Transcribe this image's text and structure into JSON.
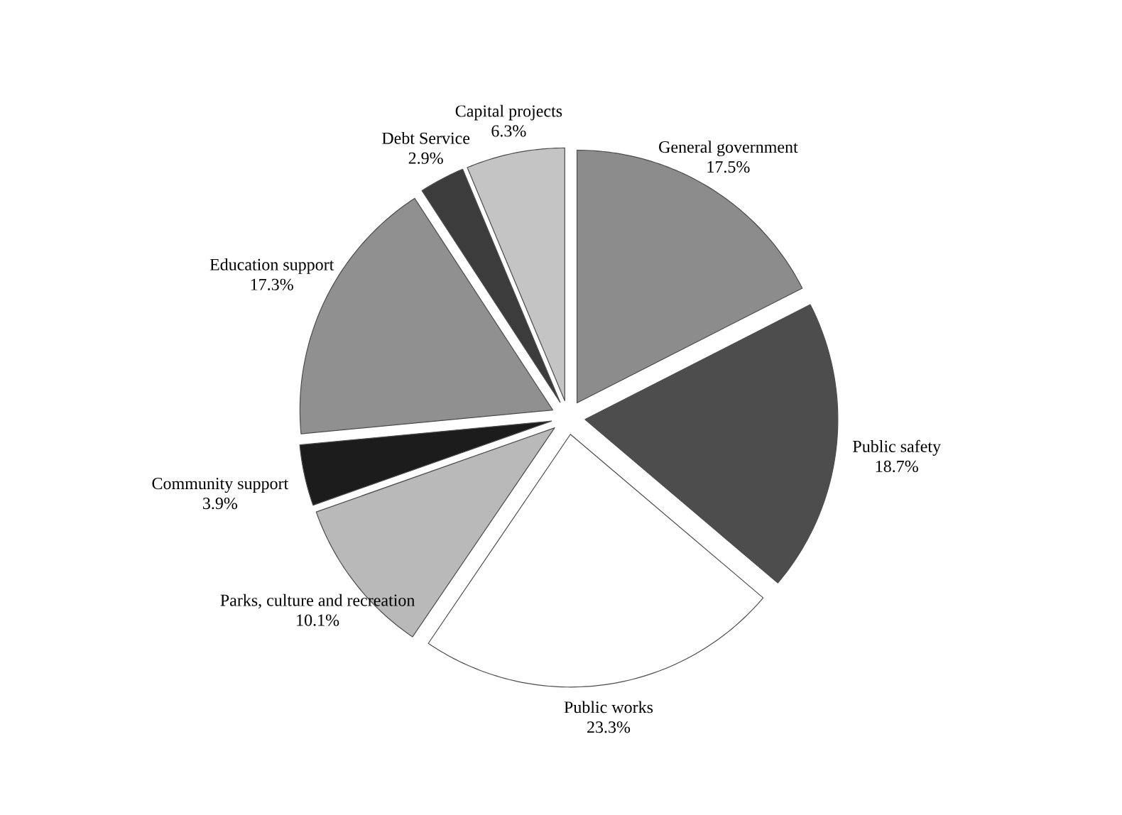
{
  "chart_data": {
    "type": "pie",
    "categories": [
      "General government",
      "Public safety",
      "Public works",
      "Parks, culture and recreation",
      "Community support",
      "Education support",
      "Debt Service",
      "Capital projects"
    ],
    "values": [
      17.5,
      18.7,
      23.3,
      10.1,
      3.9,
      17.3,
      2.9,
      6.3
    ],
    "value_labels": [
      "17.5%",
      "18.7%",
      "23.3%",
      "10.1%",
      "3.9%",
      "17.3%",
      "2.9%",
      "6.3%"
    ],
    "colors": [
      "#8c8c8c",
      "#4d4d4d",
      "#ffffff",
      "#b9b9b9",
      "#1c1c1c",
      "#909090",
      "#3c3c3c",
      "#c4c4c4"
    ]
  }
}
